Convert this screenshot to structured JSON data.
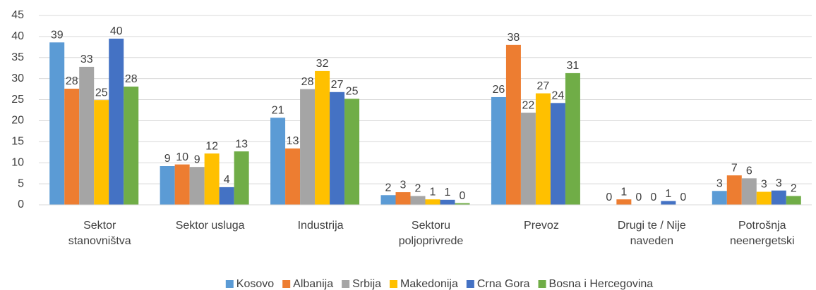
{
  "chart_data": {
    "type": "bar",
    "categories": [
      "Sektor stanovništva",
      "Sektor usluga",
      "Industrija",
      "Sektoru poljoprivrede",
      "Prevoz",
      "Drugi te / Nije naveden",
      "Potrošnja neenergetski"
    ],
    "series": [
      {
        "name": "Kosovo",
        "color": "#5b9bd5",
        "values": [
          38.6,
          9.2,
          20.7,
          2.3,
          25.6,
          0,
          3.3
        ],
        "value_labels": [
          "39",
          "9",
          "21",
          "2",
          "26",
          "0",
          "3"
        ]
      },
      {
        "name": "Albanija",
        "color": "#ed7d31",
        "values": [
          27.6,
          9.6,
          13.4,
          3.0,
          38.0,
          1.3,
          7.0
        ],
        "value_labels": [
          "28",
          "10",
          "13",
          "3",
          "38",
          "1",
          "7"
        ]
      },
      {
        "name": "Srbija",
        "color": "#a5a5a5",
        "values": [
          32.8,
          9.0,
          27.5,
          2.1,
          21.9,
          0,
          6.3
        ],
        "value_labels": [
          "33",
          "9",
          "28",
          "2",
          "22",
          "0",
          "6"
        ]
      },
      {
        "name": "Makedonija",
        "color": "#ffc000",
        "values": [
          24.9,
          12.2,
          31.8,
          1.3,
          26.5,
          0,
          3.1
        ],
        "value_labels": [
          "25",
          "12",
          "32",
          "1",
          "27",
          "0",
          "3"
        ]
      },
      {
        "name": "Crna Gora",
        "color": "#4472c4",
        "values": [
          39.5,
          4.2,
          26.8,
          1.2,
          24.2,
          0.9,
          3.4
        ],
        "value_labels": [
          "40",
          "4",
          "27",
          "1",
          "24",
          "1",
          "3"
        ]
      },
      {
        "name": "Bosna i Hercegovina",
        "color": "#70ad47",
        "values": [
          28.1,
          12.7,
          25.2,
          0.4,
          31.3,
          0,
          2.1
        ],
        "value_labels": [
          "28",
          "13",
          "25",
          "0",
          "31",
          "0",
          "2"
        ]
      }
    ],
    "ylim": [
      0,
      45
    ],
    "yticks": [
      0,
      5,
      10,
      15,
      20,
      25,
      30,
      35,
      40,
      45
    ],
    "grid": true,
    "legend": "bottom"
  }
}
